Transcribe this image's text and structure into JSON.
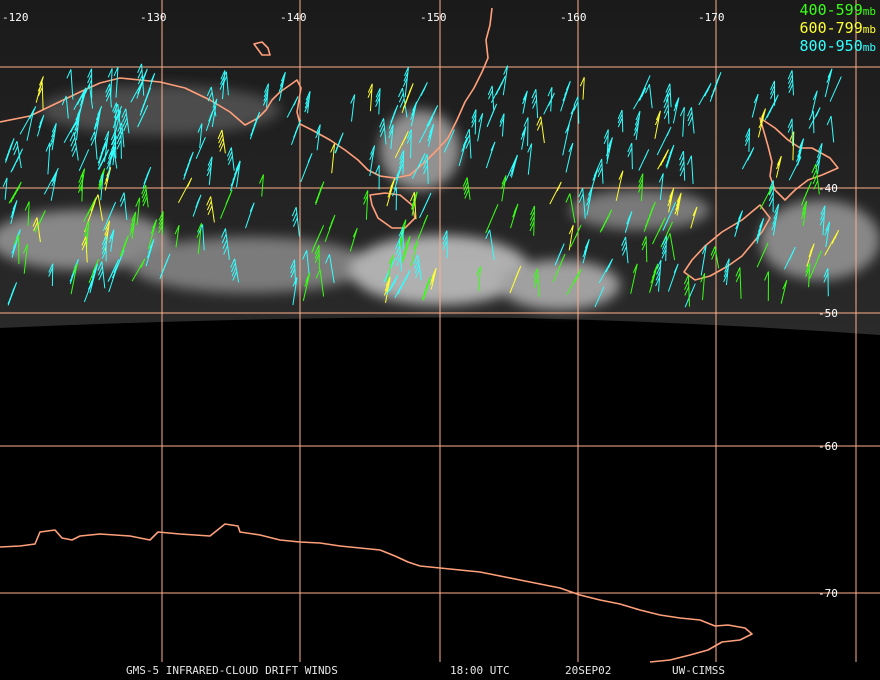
{
  "legend": [
    {
      "range": "400-599",
      "unit": "mb",
      "color": "#39ff14"
    },
    {
      "range": "600-799",
      "unit": "mb",
      "color": "#ffff33"
    },
    {
      "range": "800-950",
      "unit": "mb",
      "color": "#33ffff"
    }
  ],
  "longitude_labels": [
    "-120",
    "-130",
    "-140",
    "-150",
    "-160",
    "-170"
  ],
  "latitude_labels": [
    "-40",
    "-50",
    "-60",
    "-70"
  ],
  "footer": {
    "product": "GMS-5 INFRARED-CLOUD DRIFT WINDS",
    "time": "18:00 UTC",
    "date": "20SEP02",
    "source": "UW-CIMSS"
  },
  "colors": {
    "background": "#000000",
    "grid": "#ffb08a",
    "coastline": "#ffa07a",
    "cloud": "#d8d8d8"
  }
}
